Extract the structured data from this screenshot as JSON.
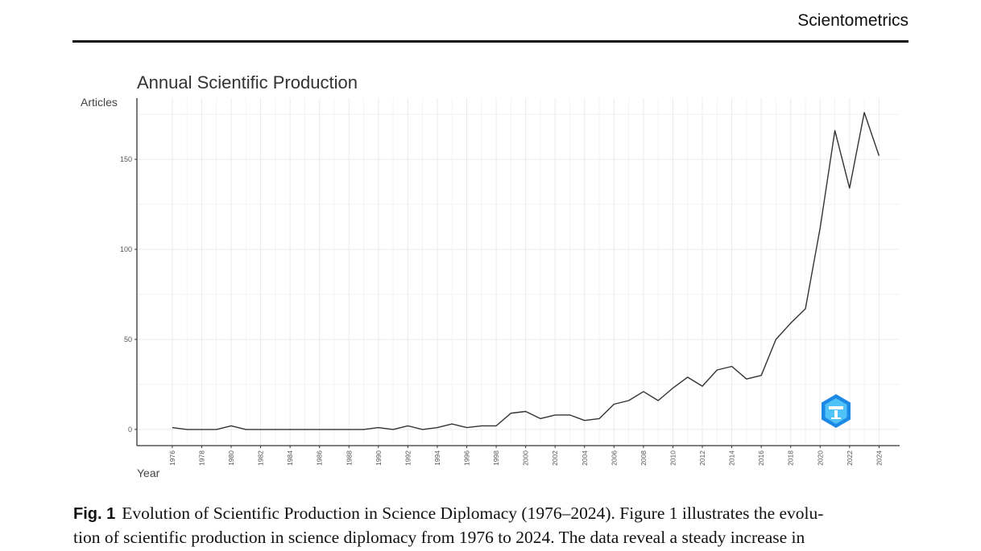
{
  "header": {
    "journal": "Scientometrics"
  },
  "caption": {
    "label": "Fig. 1",
    "lines": [
      "Evolution of Scientific Production in Science Diplomacy (1976–2024). Figure 1 illustrates the evolu-",
      "tion of scientific production in science diplomacy from 1976 to 2024. The data reveal a steady increase in"
    ]
  },
  "chart_data": {
    "type": "line",
    "title": "Annual Scientific Production",
    "xlabel": "Year",
    "ylabel": "Articles",
    "x": [
      1976,
      1977,
      1978,
      1979,
      1980,
      1981,
      1982,
      1983,
      1984,
      1985,
      1986,
      1987,
      1988,
      1989,
      1990,
      1991,
      1992,
      1993,
      1994,
      1995,
      1996,
      1997,
      1998,
      1999,
      2000,
      2001,
      2002,
      2003,
      2004,
      2005,
      2006,
      2007,
      2008,
      2009,
      2010,
      2011,
      2012,
      2013,
      2014,
      2015,
      2016,
      2017,
      2018,
      2019,
      2020,
      2021,
      2022,
      2023,
      2024
    ],
    "values": [
      1,
      0,
      0,
      0,
      2,
      0,
      0,
      0,
      0,
      0,
      0,
      0,
      0,
      0,
      1,
      0,
      2,
      0,
      1,
      3,
      1,
      2,
      2,
      9,
      10,
      6,
      8,
      8,
      5,
      6,
      14,
      16,
      21,
      16,
      23,
      29,
      24,
      33,
      35,
      28,
      30,
      50,
      59,
      67,
      112,
      166,
      134,
      176,
      152
    ],
    "xticks": [
      "1976",
      "1978",
      "1980",
      "1982",
      "1984",
      "1986",
      "1988",
      "1990",
      "1992",
      "1994",
      "1996",
      "1998",
      "2000",
      "2002",
      "2004",
      "2006",
      "2008",
      "2010",
      "2012",
      "2014",
      "2016",
      "2018",
      "2020",
      "2022",
      "2024"
    ],
    "yticks": [
      "0",
      "50",
      "100",
      "150"
    ],
    "xlim": [
      1973.6,
      2025.4
    ],
    "ylim": [
      -9,
      184
    ],
    "grid": true,
    "line_color": "#333333",
    "grid_color": "#ebebeb",
    "logo_colors": [
      "#1e88e5",
      "#4fc3f7"
    ]
  }
}
